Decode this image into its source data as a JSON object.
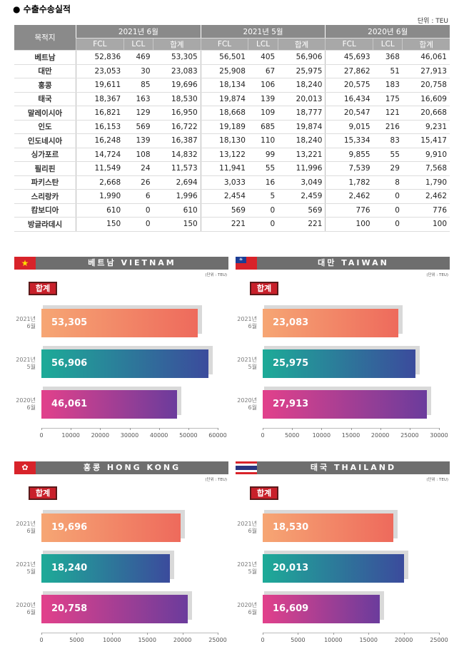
{
  "table": {
    "title": "수출수송실적",
    "unit": "단위 : TEU",
    "header": {
      "first": "목적지",
      "groups": [
        "2021년 6월",
        "2021년 5월",
        "2020년 6월"
      ],
      "sub": [
        "FCL",
        "LCL",
        "합계"
      ]
    },
    "rows": [
      [
        "베트남",
        "52,836",
        "469",
        "53,305",
        "56,501",
        "405",
        "56,906",
        "45,693",
        "368",
        "46,061"
      ],
      [
        "대만",
        "23,053",
        "30",
        "23,083",
        "25,908",
        "67",
        "25,975",
        "27,862",
        "51",
        "27,913"
      ],
      [
        "홍콩",
        "19,611",
        "85",
        "19,696",
        "18,134",
        "106",
        "18,240",
        "20,575",
        "183",
        "20,758"
      ],
      [
        "태국",
        "18,367",
        "163",
        "18,530",
        "19,874",
        "139",
        "20,013",
        "16,434",
        "175",
        "16,609"
      ],
      [
        "말레이시아",
        "16,821",
        "129",
        "16,950",
        "18,668",
        "109",
        "18,777",
        "20,547",
        "121",
        "20,668"
      ],
      [
        "인도",
        "16,153",
        "569",
        "16,722",
        "19,189",
        "685",
        "19,874",
        "9,015",
        "216",
        "9,231"
      ],
      [
        "인도네시아",
        "16,248",
        "139",
        "16,387",
        "18,130",
        "110",
        "18,240",
        "15,334",
        "83",
        "15,417"
      ],
      [
        "싱가포르",
        "14,724",
        "108",
        "14,832",
        "13,122",
        "99",
        "13,221",
        "9,855",
        "55",
        "9,910"
      ],
      [
        "필리핀",
        "11,549",
        "24",
        "11,573",
        "11,941",
        "55",
        "11,996",
        "7,539",
        "29",
        "7,568"
      ],
      [
        "파키스탄",
        "2,668",
        "26",
        "2,694",
        "3,033",
        "16",
        "3,049",
        "1,782",
        "8",
        "1,790"
      ],
      [
        "스리랑카",
        "1,990",
        "6",
        "1,996",
        "2,454",
        "5",
        "2,459",
        "2,462",
        "0",
        "2,462"
      ],
      [
        "캄보디아",
        "610",
        "0",
        "610",
        "569",
        "0",
        "569",
        "776",
        "0",
        "776"
      ],
      [
        "방글라데시",
        "150",
        "0",
        "150",
        "221",
        "0",
        "221",
        "100",
        "0",
        "100"
      ]
    ]
  },
  "chart_data": [
    {
      "type": "bar",
      "title": "베트남 VIETNAM",
      "unit": "(단위 : TEU)",
      "badge": "합계",
      "categories": [
        "2021년 6월",
        "2021년 5월",
        "2020년 6월"
      ],
      "values": [
        53305,
        56906,
        46061
      ],
      "value_labels": [
        "53,305",
        "56,906",
        "46,061"
      ],
      "colors": [
        [
          "#f6a674",
          "#ee6a5c"
        ],
        [
          "#1dab98",
          "#3b4b9c"
        ],
        [
          "#e2418b",
          "#6b3c9c"
        ]
      ],
      "xlim": [
        0,
        60000
      ],
      "xticks": [
        0,
        10000,
        20000,
        30000,
        40000,
        50000,
        60000
      ]
    },
    {
      "type": "bar",
      "title": "대만 TAIWAN",
      "unit": "(단위 : TEU)",
      "badge": "합계",
      "categories": [
        "2021년 6월",
        "2021년 5월",
        "2020년 6월"
      ],
      "values": [
        23083,
        25975,
        27913
      ],
      "value_labels": [
        "23,083",
        "25,975",
        "27,913"
      ],
      "colors": [
        [
          "#f6a674",
          "#ee6a5c"
        ],
        [
          "#1dab98",
          "#3b4b9c"
        ],
        [
          "#e2418b",
          "#6b3c9c"
        ]
      ],
      "xlim": [
        0,
        30000
      ],
      "xticks": [
        0,
        5000,
        10000,
        15000,
        20000,
        25000,
        30000
      ]
    },
    {
      "type": "bar",
      "title": "홍콩 HONG KONG",
      "unit": "(단위 : TEU)",
      "badge": "합계",
      "categories": [
        "2021년 6월",
        "2021년 5월",
        "2020년 6월"
      ],
      "values": [
        19696,
        18240,
        20758
      ],
      "value_labels": [
        "19,696",
        "18,240",
        "20,758"
      ],
      "colors": [
        [
          "#f6a674",
          "#ee6a5c"
        ],
        [
          "#1dab98",
          "#3b4b9c"
        ],
        [
          "#e2418b",
          "#6b3c9c"
        ]
      ],
      "xlim": [
        0,
        25000
      ],
      "xticks": [
        0,
        5000,
        10000,
        15000,
        20000,
        25000
      ]
    },
    {
      "type": "bar",
      "title": "태국 THAILAND",
      "unit": "(단위 : TEU)",
      "badge": "합계",
      "categories": [
        "2021년 6월",
        "2021년 5월",
        "2020년 6월"
      ],
      "values": [
        18530,
        20013,
        16609
      ],
      "value_labels": [
        "18,530",
        "20,013",
        "16,609"
      ],
      "colors": [
        [
          "#f6a674",
          "#ee6a5c"
        ],
        [
          "#1dab98",
          "#3b4b9c"
        ],
        [
          "#e2418b",
          "#6b3c9c"
        ]
      ],
      "xlim": [
        0,
        25000
      ],
      "xticks": [
        0,
        5000,
        10000,
        15000,
        20000,
        25000
      ]
    }
  ]
}
